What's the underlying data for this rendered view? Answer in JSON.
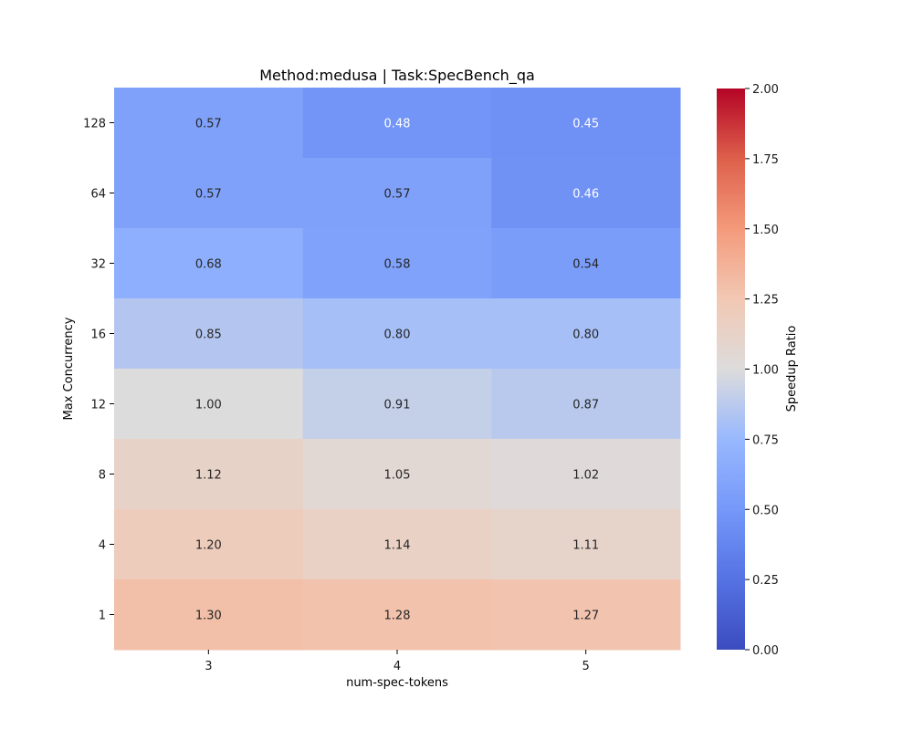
{
  "chart_data": {
    "type": "heatmap",
    "title": "Method:medusa  |  Task:SpecBench_qa",
    "xlabel": "num-spec-tokens",
    "ylabel": "Max Concurrency",
    "x_categories": [
      "3",
      "4",
      "5"
    ],
    "y_categories": [
      "128",
      "64",
      "32",
      "16",
      "12",
      "8",
      "4",
      "1"
    ],
    "values": [
      [
        0.57,
        0.48,
        0.45
      ],
      [
        0.57,
        0.57,
        0.46
      ],
      [
        0.68,
        0.58,
        0.54
      ],
      [
        0.85,
        0.8,
        0.8
      ],
      [
        1.0,
        0.91,
        0.87
      ],
      [
        1.12,
        1.05,
        1.02
      ],
      [
        1.2,
        1.14,
        1.11
      ],
      [
        1.3,
        1.28,
        1.27
      ]
    ],
    "value_labels": [
      [
        "0.57",
        "0.48",
        "0.45"
      ],
      [
        "0.57",
        "0.57",
        "0.46"
      ],
      [
        "0.68",
        "0.58",
        "0.54"
      ],
      [
        "0.85",
        "0.80",
        "0.80"
      ],
      [
        "1.00",
        "0.91",
        "0.87"
      ],
      [
        "1.12",
        "1.05",
        "1.02"
      ],
      [
        "1.20",
        "1.14",
        "1.11"
      ],
      [
        "1.30",
        "1.28",
        "1.27"
      ]
    ],
    "colorbar": {
      "label": "Speedup Ratio",
      "range": [
        0,
        2
      ],
      "ticks": [
        "0.00",
        "0.25",
        "0.50",
        "0.75",
        "1.00",
        "1.25",
        "1.50",
        "1.75",
        "2.00"
      ],
      "colormap": "coolwarm"
    },
    "grid": false,
    "legend": "none"
  }
}
